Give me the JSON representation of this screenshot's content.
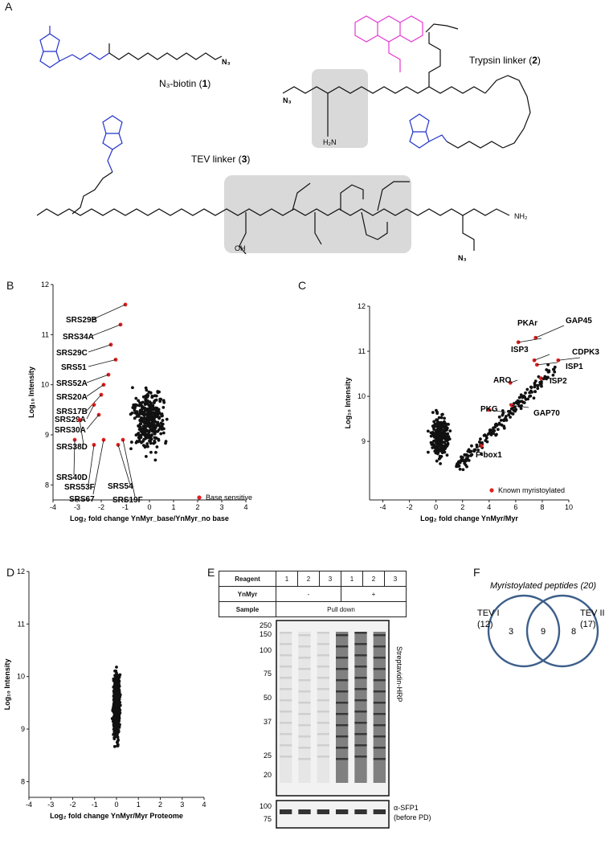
{
  "panels": {
    "A": "A",
    "B": "B",
    "C": "C",
    "D": "D",
    "E": "E",
    "F": "F"
  },
  "chem": {
    "biotin": {
      "name": "N₃-biotin (",
      "num": "1",
      "close": ")"
    },
    "trypsin": {
      "name": "Trypsin linker (",
      "num": "2",
      "close": ")"
    },
    "tev": {
      "name": "TEV linker (",
      "num": "3",
      "close": ")"
    },
    "atoms": {
      "N3": "N₃",
      "O": "O",
      "NH": "NH",
      "HN": "HN",
      "H": "H",
      "S": "S",
      "N": "N",
      "NH2": "NH₂",
      "OH": "OH",
      "H2N": "H₂N"
    }
  },
  "colors": {
    "dots": "#111111",
    "highlight": "#e02020",
    "biotin": "#2233cc",
    "rhodamine": "#e43bd0",
    "shade": "#d9d9d9",
    "venn": "#3d5f8a"
  },
  "chart_data": [
    {
      "type": "scatter",
      "panel": "B",
      "xlabel": "Log₂ fold change YnMyr_base/YnMyr_no base",
      "ylabel": "Log₁₀ Intensity",
      "xlim": [
        -4,
        4
      ],
      "ylim": [
        7.7,
        12
      ],
      "xticks": [
        "-4",
        "-3",
        "-2",
        "-1",
        "0",
        "1",
        "2",
        "3",
        "4"
      ],
      "yticks": [
        "8",
        "9",
        "10",
        "11",
        "12"
      ],
      "legend": "Base sensitive",
      "highlight": [
        {
          "label": "SRS29B",
          "x": -1.0,
          "y": 11.6
        },
        {
          "label": "SRS34A",
          "x": -1.2,
          "y": 11.2
        },
        {
          "label": "SRS29C",
          "x": -1.6,
          "y": 10.8
        },
        {
          "label": "SRS51",
          "x": -1.4,
          "y": 10.5
        },
        {
          "label": "SRS52A",
          "x": -1.7,
          "y": 10.2
        },
        {
          "label": "SRS20A",
          "x": -1.9,
          "y": 10.0
        },
        {
          "label": "SRS17B",
          "x": -2.0,
          "y": 9.8
        },
        {
          "label": "SRS29A",
          "x": -2.3,
          "y": 9.6
        },
        {
          "label": "SRS30A",
          "x": -2.1,
          "y": 9.4
        },
        {
          "label": "SRS38D",
          "x": -2.9,
          "y": 9.3
        },
        {
          "label": "SRS40D",
          "x": -3.1,
          "y": 8.9
        },
        {
          "label": "SRS53F",
          "x": -2.3,
          "y": 8.8
        },
        {
          "label": "SRS67",
          "x": -1.9,
          "y": 8.9
        },
        {
          "label": "SRS54",
          "x": -1.3,
          "y": 8.8
        },
        {
          "label": "SRS19F",
          "x": -1.1,
          "y": 8.9
        }
      ]
    },
    {
      "type": "scatter",
      "panel": "C",
      "xlabel": "Log₂ fold change YnMyr/Myr",
      "ylabel": "Log₁₀ Intensity",
      "xlim": [
        -5,
        10
      ],
      "ylim": [
        7.7,
        12
      ],
      "xticks": [
        "-4",
        "-2",
        "0",
        "2",
        "4",
        "6",
        "8",
        "10"
      ],
      "yticks": [
        "9",
        "10",
        "11",
        "12"
      ],
      "legend": "Known myristoylated",
      "highlight": [
        {
          "label": "GAP45",
          "x": 7.5,
          "y": 11.3
        },
        {
          "label": "PKAr",
          "x": 6.2,
          "y": 11.2
        },
        {
          "label": "ISP3",
          "x": 7.4,
          "y": 10.8
        },
        {
          "label": "CDPK3",
          "x": 9.2,
          "y": 10.8
        },
        {
          "label": "ISP1",
          "x": 7.6,
          "y": 10.7
        },
        {
          "label": "ARO",
          "x": 5.6,
          "y": 10.3
        },
        {
          "label": "ISP2",
          "x": 7.9,
          "y": 10.4
        },
        {
          "label": "PKG",
          "x": 4.0,
          "y": 9.7
        },
        {
          "label": "GAP70",
          "x": 5.7,
          "y": 9.8
        },
        {
          "label": "F-box1",
          "x": 3.4,
          "y": 8.9
        }
      ]
    },
    {
      "type": "scatter",
      "panel": "D",
      "xlabel": "Log₂ fold change YnMyr/Myr Proteome",
      "ylabel": "Log₁₀ Intensity",
      "xlim": [
        -4,
        4
      ],
      "ylim": [
        7.7,
        12
      ],
      "xticks": [
        "-4",
        "-3",
        "-2",
        "-1",
        "0",
        "1",
        "2",
        "3",
        "4"
      ],
      "yticks": [
        "8",
        "9",
        "10",
        "11",
        "12"
      ]
    }
  ],
  "blot": {
    "headers": {
      "reagent": "Reagent",
      "ynmyr": "YnMyr",
      "sample": "Sample"
    },
    "lanes": [
      "1",
      "2",
      "3",
      "1",
      "2",
      "3"
    ],
    "ynmyr_vals": [
      "-",
      "+"
    ],
    "sample_val": "Pull down",
    "markers": [
      "250",
      "150",
      "100",
      "75",
      "50",
      "37",
      "25",
      "20"
    ],
    "lower_markers": [
      "100",
      "75"
    ],
    "upper_label": "Streptavidin-HRP",
    "lower_label": "α-SFP1",
    "lower_label2": "(before PD)"
  },
  "venn": {
    "title": "Myristoylated peptides (20)",
    "left_name": "TEV I",
    "left_total": "(12)",
    "right_name": "TEV II",
    "right_total": "(17)",
    "left_only": "3",
    "overlap": "9",
    "right_only": "8"
  }
}
